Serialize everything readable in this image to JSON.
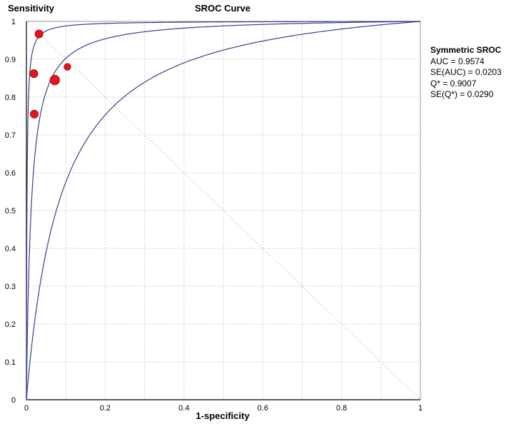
{
  "chart_data": {
    "type": "scatter",
    "title": "SROC Curve",
    "xlabel": "1-specificity",
    "ylabel": "Sensitivity",
    "xlim": [
      0,
      1
    ],
    "ylim": [
      0,
      1
    ],
    "grid": true,
    "x_ticks": [
      "0",
      "0.2",
      "0.4",
      "0.6",
      "0.8",
      "1"
    ],
    "x_tick_values": [
      0,
      0.2,
      0.4,
      0.6,
      0.8,
      1
    ],
    "y_ticks": [
      "0",
      "0.1",
      "0.2",
      "0.3",
      "0.4",
      "0.5",
      "0.6",
      "0.7",
      "0.8",
      "0.9",
      "1"
    ],
    "y_tick_values": [
      0,
      0.1,
      0.2,
      0.3,
      0.4,
      0.5,
      0.6,
      0.7,
      0.8,
      0.9,
      1
    ],
    "points": [
      {
        "x": 0.032,
        "y": 0.967,
        "size": 1
      },
      {
        "x": 0.019,
        "y": 0.862,
        "size": 1
      },
      {
        "x": 0.104,
        "y": 0.88,
        "size": 0.85
      },
      {
        "x": 0.072,
        "y": 0.845,
        "size": 1.2
      },
      {
        "x": 0.02,
        "y": 0.755,
        "size": 1
      }
    ],
    "curves": {
      "sroc_AUC": 0.9574,
      "se_AUC": 0.0203
    },
    "legend": {
      "title": "Symmetric SROC",
      "lines": [
        "AUC = 0.9574",
        "SE(AUC) = 0.0203",
        "Q* = 0.9007",
        "SE(Q*) = 0.0290"
      ],
      "placement": "right"
    },
    "colors": {
      "point_fill": "#e8141a",
      "point_stroke": "#8a0c0c",
      "curve": "#3a3f8f",
      "grid": "#cfcfcf",
      "axis": "#000000"
    }
  }
}
